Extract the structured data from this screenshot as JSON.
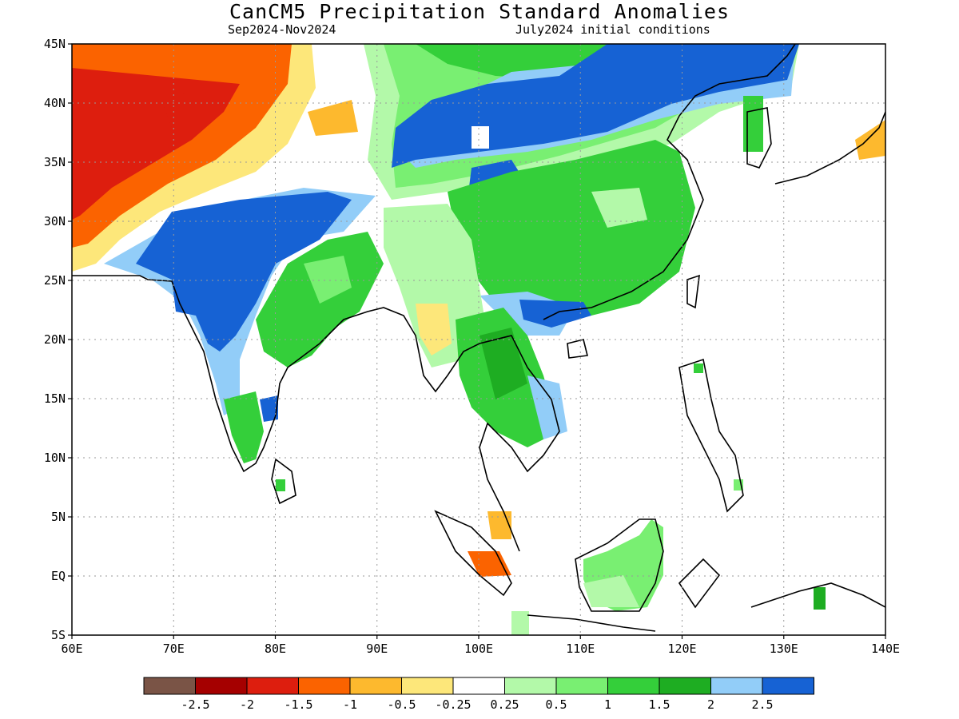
{
  "header": {
    "title": "CanCM5 Precipitation Standard Anomalies",
    "period": "Sep2024-Nov2024",
    "init": "July2024 initial conditions"
  },
  "axes": {
    "lat_labels": [
      "45N",
      "40N",
      "35N",
      "30N",
      "25N",
      "20N",
      "15N",
      "10N",
      "5N",
      "EQ",
      "5S"
    ],
    "lat_values": [
      45,
      40,
      35,
      30,
      25,
      20,
      15,
      10,
      5,
      0,
      -5
    ],
    "lon_labels": [
      "60E",
      "70E",
      "80E",
      "90E",
      "100E",
      "110E",
      "120E",
      "130E",
      "140E"
    ],
    "lon_values": [
      60,
      70,
      80,
      90,
      100,
      110,
      120,
      130,
      140
    ],
    "lon_range": [
      60,
      140
    ],
    "lat_range": [
      -5,
      45
    ],
    "grid": "dotted"
  },
  "legend": {
    "colors": [
      "#7a5446",
      "#a50000",
      "#dd1e0e",
      "#fb6300",
      "#fdb92e",
      "#fde77a",
      "#ffffff",
      "#b3f9a9",
      "#79ef72",
      "#34cf3a",
      "#1ead22",
      "#92cdf8",
      "#1662d4"
    ],
    "labels": [
      "-2.5",
      "-2",
      "-1.5",
      "-1",
      "-0.5",
      "-0.25",
      "0.25",
      "0.5",
      "1",
      "1.5",
      "2",
      "2.5"
    ]
  },
  "colors": {
    "strong_wet": "#1662d4",
    "strong_dry": "#dd1e0e"
  }
}
